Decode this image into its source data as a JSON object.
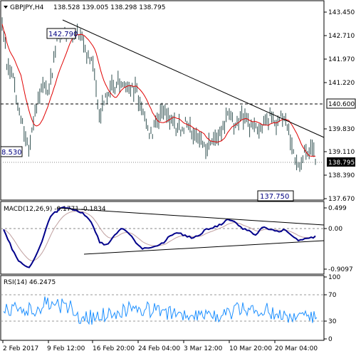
{
  "header": {
    "symbol_timeframe": "GBPJPY,H4",
    "ohlc": "138.528 139.005 138.298 138.795",
    "collapse_icon": "triangle-down-icon"
  },
  "price_axis": {
    "ticks": [
      "143.450",
      "142.710",
      "141.970",
      "141.220",
      "139.830",
      "139.110",
      "138.390",
      "137.670"
    ],
    "current_price": "138.795",
    "level_price": "140.600"
  },
  "annotations": {
    "high": "142.790",
    "low": "137.750",
    "left": "8.530"
  },
  "macd": {
    "title": "MACD(12,26,9) -0.1771 -0.1834",
    "ticks": [
      "0.499",
      "0.00",
      "-0.9097"
    ]
  },
  "rsi": {
    "title": "RSI(14) 46.2475",
    "ticks": [
      "100",
      "70",
      "30",
      "0"
    ]
  },
  "time_axis": {
    "labels": [
      "2 Feb 2017",
      "9 Feb 12:00",
      "16 Feb 20:00",
      "24 Feb 04:00",
      "3 Mar 12:00",
      "10 Mar 20:00",
      "20 Mar 04:00"
    ]
  },
  "colors": {
    "candles": "#2f4f4f",
    "ma": "#e00000",
    "macd_main": "#00008b",
    "macd_signal": "#c0a0a0",
    "rsi": "#1e90ff",
    "trendline": "#000000"
  },
  "chart_data": {
    "type": "candlestick",
    "x_range": [
      "2 Feb 2017",
      "20 Mar 2017"
    ],
    "y_range": [
      137.67,
      143.45
    ],
    "marked_high": 142.79,
    "marked_low": 137.75,
    "horizontal_level": 140.6,
    "close": 138.795
  }
}
